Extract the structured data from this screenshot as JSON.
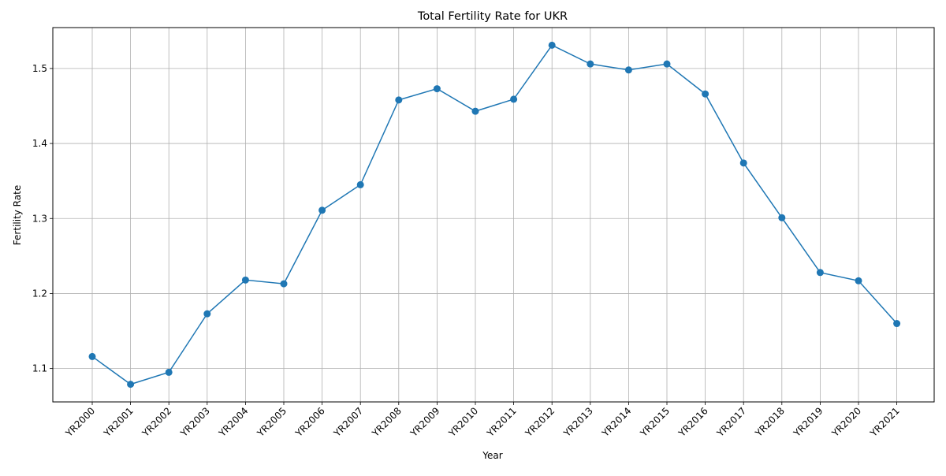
{
  "chart_data": {
    "type": "line",
    "title": "Total Fertility Rate for UKR",
    "xlabel": "Year",
    "ylabel": "Fertility Rate",
    "categories": [
      "YR2000",
      "YR2001",
      "YR2002",
      "YR2003",
      "YR2004",
      "YR2005",
      "YR2006",
      "YR2007",
      "YR2008",
      "YR2009",
      "YR2010",
      "YR2011",
      "YR2012",
      "YR2013",
      "YR2014",
      "YR2015",
      "YR2016",
      "YR2017",
      "YR2018",
      "YR2019",
      "YR2020",
      "YR2021"
    ],
    "series": [
      {
        "values": [
          1.116,
          1.079,
          1.095,
          1.173,
          1.218,
          1.213,
          1.311,
          1.345,
          1.458,
          1.473,
          1.443,
          1.459,
          1.531,
          1.506,
          1.498,
          1.506,
          1.466,
          1.374,
          1.301,
          1.228,
          1.217,
          1.16
        ],
        "color": "#1f77b4",
        "marker": "circle"
      }
    ],
    "yticks": [
      1.1,
      1.2,
      1.3,
      1.4,
      1.5
    ],
    "ylim": [
      1.0555,
      1.5545
    ],
    "grid": true,
    "xtick_rotation": 45
  }
}
